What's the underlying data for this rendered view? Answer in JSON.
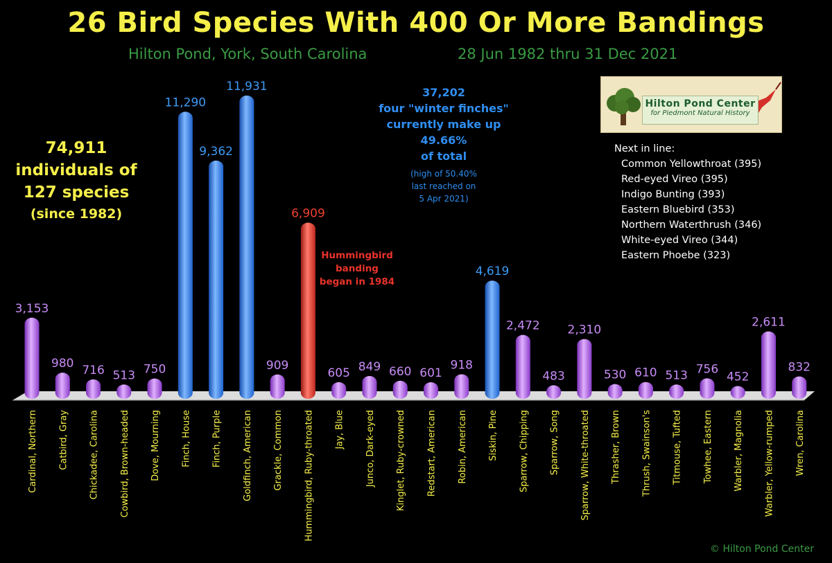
{
  "header": {
    "title": "26 Bird Species With 400 Or More Bandings",
    "subtitle_place": "Hilton Pond, York, South Carolina",
    "subtitle_dates": "28 Jun 1982 thru 31 Dec 2021"
  },
  "notes": {
    "total_line1": "74,911",
    "total_line2": "individuals of",
    "total_line3": "127 species",
    "total_line4": "(since 1982)",
    "hummingbird_1": "Hummingbird",
    "hummingbird_2": "banding",
    "hummingbird_3": "began in 1984",
    "finch_1": "37,202",
    "finch_2": "four \"winter finches\"",
    "finch_3": "currently make up",
    "finch_4": "49.66%",
    "finch_5": "of total",
    "finch_6": "(high of 50.40%",
    "finch_7": "last reached on",
    "finch_8": "5 Apr 2021)"
  },
  "logo": {
    "title": "Hilton Pond Center",
    "tagline": "for Piedmont Natural History"
  },
  "next_in_line": {
    "heading": "Next in line:",
    "items": [
      "Common Yellowthroat (395)",
      "Red-eyed Vireo (395)",
      "Indigo Bunting (393)",
      "Eastern Bluebird (353)",
      "Northern Waterthrush (346)",
      "White-eyed Vireo (344)",
      "Eastern Phoebe (323)"
    ]
  },
  "copyright": "© Hilton Pond Center",
  "colors": {
    "default": "#b565e8",
    "finch": "#2f7fe8",
    "hummingbird": "#e0352b",
    "default_label": "#c88cf5",
    "finch_label": "#3d9bf5",
    "hummingbird_label": "#ee4030"
  },
  "chart_data": {
    "type": "bar",
    "title": "26 Bird Species With 400 Or More Bandings",
    "ylim": [
      0,
      12000
    ],
    "grid": false,
    "categories": [
      "Cardinal, Northern",
      "Catbird, Gray",
      "Chickadee, Carolina",
      "Cowbird, Brown-headed",
      "Dove, Mourning",
      "Finch, House",
      "Finch, Purple",
      "Goldfinch, American",
      "Grackle, Common",
      "Hummingbird, Ruby-throated",
      "Jay, Blue",
      "Junco, Dark-eyed",
      "Kinglet, Ruby-crowned",
      "Redstart, American",
      "Robin, American",
      "Siskin, Pine",
      "Sparrow, Chipping",
      "Sparrow, Song",
      "Sparrow, White-throated",
      "Thrasher, Brown",
      "Thrush, Swainson's",
      "Titmouse, Tufted",
      "Towhee, Eastern",
      "Warbler, Magnolia",
      "Warbler, Yellow-rumped",
      "Wren, Carolina"
    ],
    "values": [
      3153,
      980,
      716,
      513,
      750,
      11290,
      9362,
      11931,
      909,
      6909,
      605,
      849,
      660,
      601,
      918,
      4619,
      2472,
      483,
      2310,
      530,
      610,
      513,
      756,
      452,
      2611,
      832
    ],
    "value_labels": [
      "3,153",
      "980",
      "716",
      "513",
      "750",
      "11,290",
      "9,362",
      "11,931",
      "909",
      "6,909",
      "605",
      "849",
      "660",
      "601",
      "918",
      "4,619",
      "2,472",
      "483",
      "2,310",
      "530",
      "610",
      "513",
      "756",
      "452",
      "2,611",
      "832"
    ],
    "groups": [
      "default",
      "default",
      "default",
      "default",
      "default",
      "finch",
      "finch",
      "finch",
      "default",
      "hummingbird",
      "default",
      "default",
      "default",
      "default",
      "default",
      "finch",
      "default",
      "default",
      "default",
      "default",
      "default",
      "default",
      "default",
      "default",
      "default",
      "default"
    ]
  }
}
